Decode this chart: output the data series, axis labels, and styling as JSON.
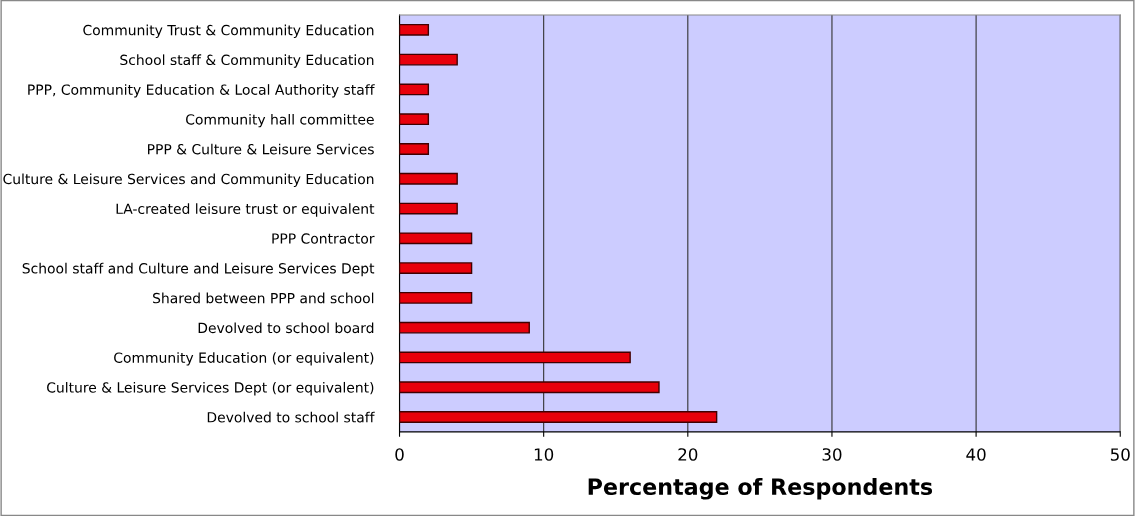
{
  "chart_data": {
    "type": "bar",
    "orientation": "horizontal",
    "xlabel": "Percentage of Respondents",
    "categories": [
      "Community Trust & Community Education",
      "School staff & Community Education",
      "PPP, Community Education & Local Authority staff",
      "Community hall committee",
      "PPP & Culture & Leisure Services",
      "Culture & Leisure Services and Community Education",
      "LA-created leisure trust or equivalent",
      "PPP Contractor",
      "School staff and Culture and Leisure Services Dept",
      "Shared between PPP and school",
      "Devolved to school board",
      "Community Education (or equivalent)",
      "Culture & Leisure Services Dept (or equivalent)",
      "Devolved to school staff"
    ],
    "values": [
      2,
      4,
      2,
      2,
      2,
      4,
      4,
      5,
      5,
      5,
      9,
      16,
      18,
      22
    ],
    "color": "#e8000b",
    "xlim": [
      0,
      50
    ],
    "xticks": [
      0,
      10,
      20,
      30,
      40,
      50
    ],
    "grid": "x"
  }
}
